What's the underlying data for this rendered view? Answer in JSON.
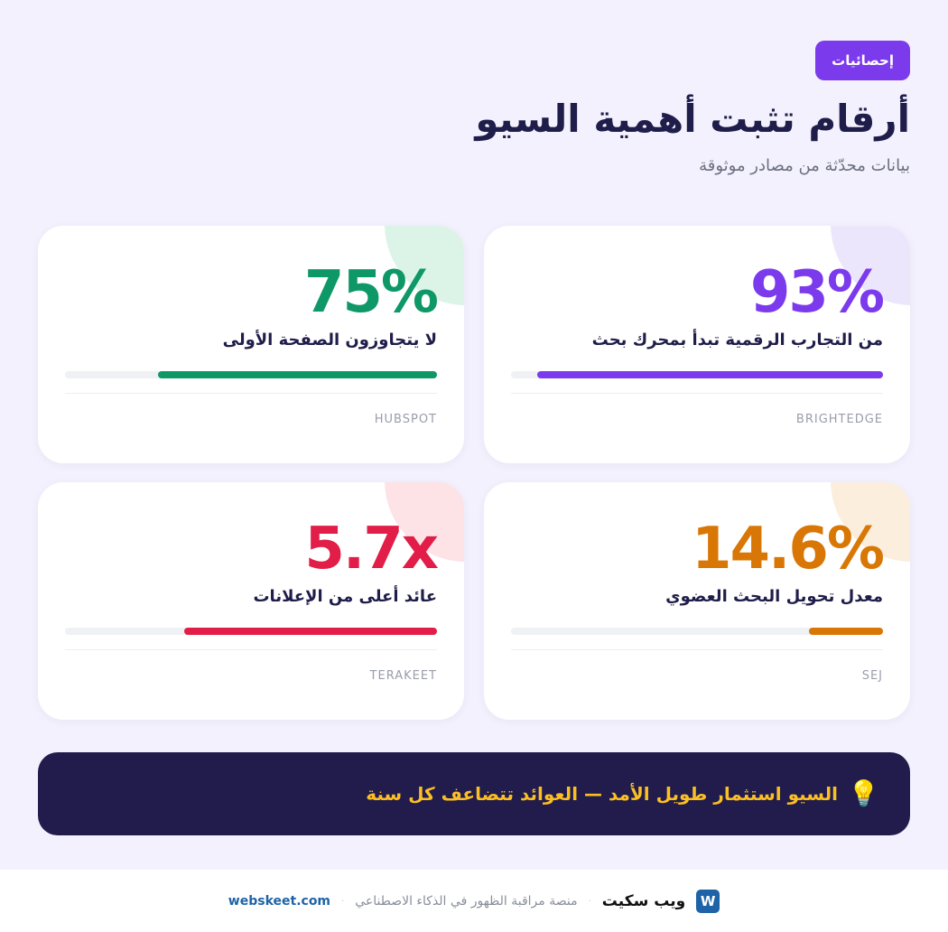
{
  "header": {
    "badge": "إحصائيات",
    "title": "أرقام تثبت أهمية السيو",
    "subtitle": "بيانات محدّثة من مصادر موثوقة"
  },
  "stats": [
    {
      "value": "93%",
      "label": "من التجارب الرقمية تبدأ بمحرك بحث",
      "source": "BRIGHTEDGE",
      "progress": 0.93,
      "color": "#7c3aed",
      "tint": "#ece6fd"
    },
    {
      "value": "75%",
      "label": "لا يتجاوزون الصفحة الأولى",
      "source": "HUBSPOT",
      "progress": 0.75,
      "color": "#0e9867",
      "tint": "#dcf3e8"
    },
    {
      "value": "14.6%",
      "label": "معدل تحويل البحث العضوي",
      "source": "SEJ",
      "progress": 0.2,
      "color": "#d97706",
      "tint": "#fbeedd"
    },
    {
      "value": "5.7x",
      "label": "عائد أعلى من الإعلانات",
      "source": "TERAKEET",
      "progress": 0.68,
      "color": "#e11d48",
      "tint": "#fde2e6"
    }
  ],
  "banner": {
    "icon": "lightbulb-icon",
    "text": "السيو استثمار طويل الأمد — العوائد تتضاعف كل سنة"
  },
  "footer": {
    "logo_letter": "W",
    "brand": "ويب سكيت",
    "separator": "·",
    "tagline": "منصة مراقبة الظهور في الذكاء الاصطناعي",
    "site": "webskeet.com"
  }
}
